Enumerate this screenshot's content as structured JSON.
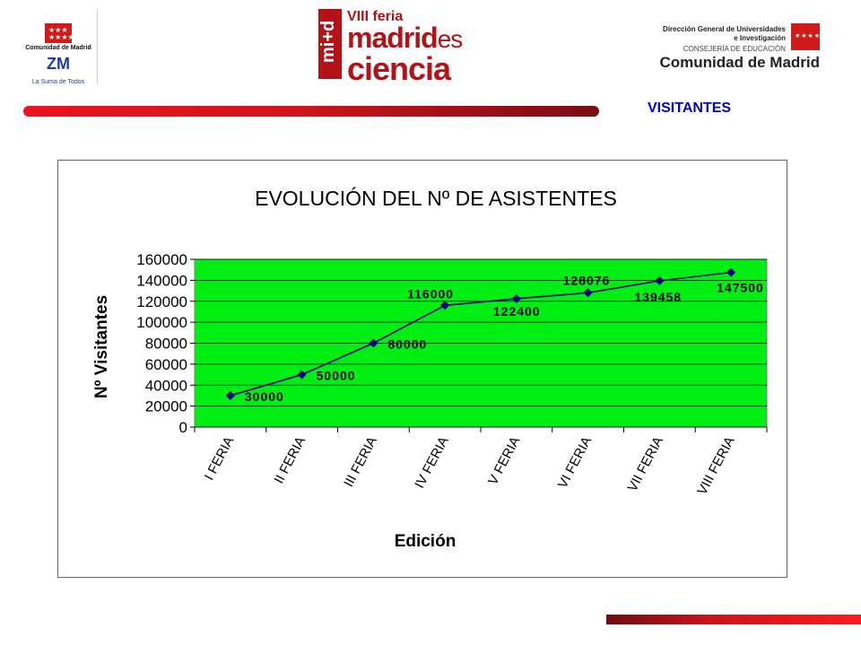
{
  "header": {
    "left_logo": {
      "org_name": "Comunidad de Madrid",
      "mark": "ZM",
      "tagline": "La Suma de Todos",
      "icon": "madrid-stars-icon"
    },
    "center_logo": {
      "line1": "VIII feria",
      "line2a": "madrid",
      "line2b": "es",
      "line3": "ciencia",
      "badge": "mi+d"
    },
    "right_logo": {
      "line1": "Dirección General de Universidades",
      "line2": "e Investigación",
      "line3": "CONSEJERÍA DE EDUCACIÓN",
      "line4": "Comunidad de Madrid",
      "icon": "madrid-flag-icon"
    },
    "page_label": "VISITANTES"
  },
  "colors": {
    "plot_bg": "#00ee11",
    "line": "#000080",
    "marker": "#000080",
    "label_text": "#000000",
    "accent_red": "#e8141e",
    "label_blue": "#0000cc"
  },
  "chart_data": {
    "type": "line",
    "title": "EVOLUCIÓN DEL Nº DE ASISTENTES",
    "xlabel": "Edición",
    "ylabel": "Nº Visitantes",
    "categories": [
      "I FERIA",
      "II FERIA",
      "III FERIA",
      "IV FERIA",
      "V FERIA",
      "VI FERIA",
      "VII FERIA",
      "VIII FERIA"
    ],
    "series": [
      {
        "values": [
          30000,
          50000,
          80000,
          116000,
          122400,
          128076,
          139458,
          147500
        ]
      }
    ],
    "data_labels": [
      "30000",
      "50000",
      "80000",
      "116000",
      "122400",
      "128076",
      "139458",
      "147500"
    ],
    "ylim": [
      0,
      160000
    ],
    "yticks": [
      0,
      20000,
      40000,
      60000,
      80000,
      100000,
      120000,
      140000,
      160000
    ],
    "ytick_labels": [
      "0",
      "20000",
      "40000",
      "60000",
      "80000",
      "100000",
      "120000",
      "140000",
      "160000"
    ],
    "grid": true,
    "legend": "none"
  }
}
